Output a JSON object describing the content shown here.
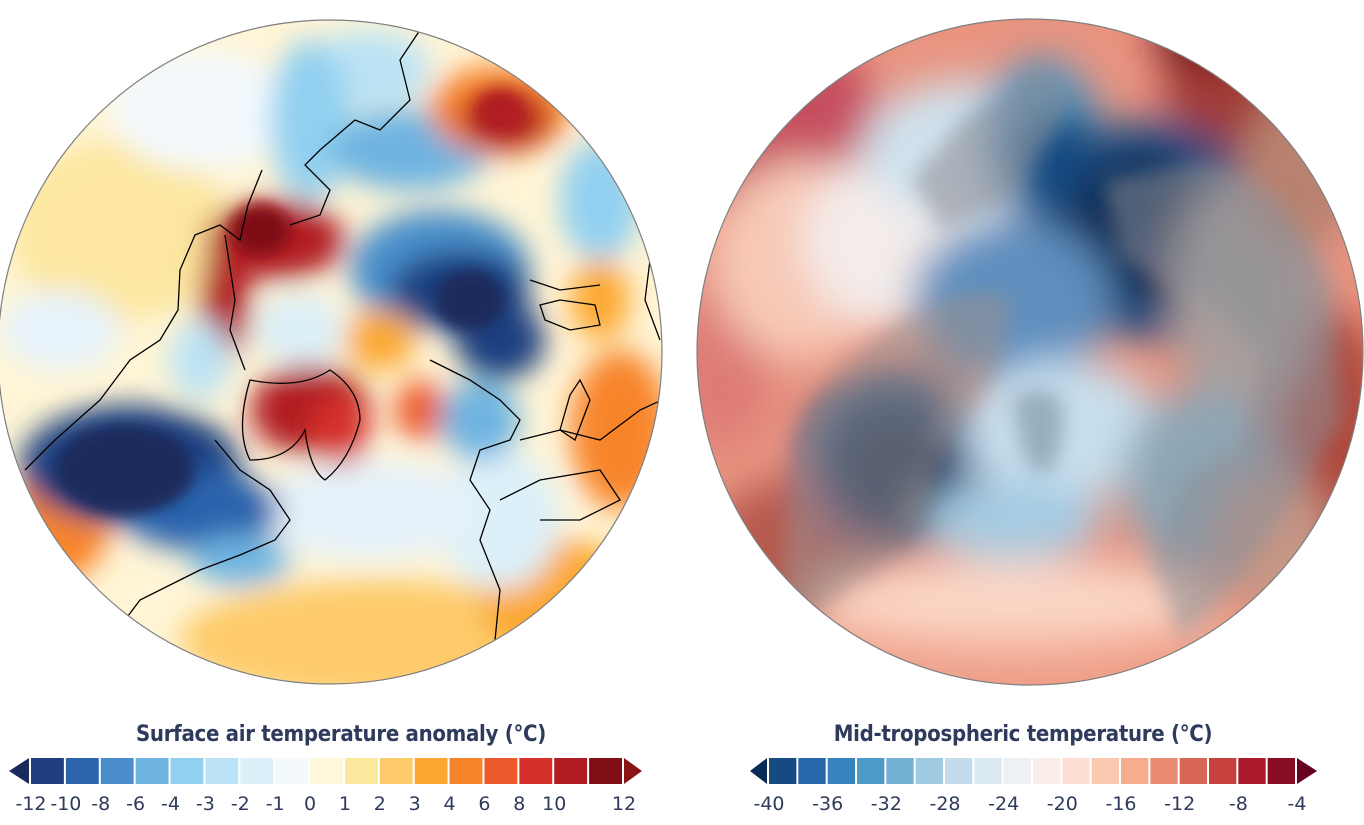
{
  "figure": {
    "panels": [
      {
        "id": "surface",
        "legend_title": "Surface air temperature anomaly (°C)",
        "colorbar": {
          "ticks": [
            "-12",
            "-10",
            "-8",
            "-6",
            "-4",
            "-3",
            "-2",
            "-1",
            "0",
            "1",
            "2",
            "3",
            "4",
            "6",
            "8",
            "10",
            "12"
          ],
          "colors": [
            "#1f3f80",
            "#2b63ad",
            "#4a8fcb",
            "#6eb4e1",
            "#92d0f1",
            "#bce3f5",
            "#dcf0f9",
            "#f3f9fd",
            "#fff8dd",
            "#fde99d",
            "#fdcb6a",
            "#fca833",
            "#f8842a",
            "#ec5a2b",
            "#d7302b",
            "#b11c22",
            "#7f0f14"
          ],
          "extend_low_color": "#1b2a5c",
          "extend_high_color": "#8a1316",
          "tick_labels": [
            "-12",
            "-10",
            "-8",
            "-6",
            "-4",
            "-3",
            "-2",
            "-1",
            "0",
            "1",
            "2",
            "3",
            "4",
            "6",
            "8",
            "10",
            "12"
          ],
          "extend": "both"
        }
      },
      {
        "id": "midtrop",
        "legend_title": "Mid-tropospheric temperature (°C)",
        "colorbar": {
          "colors": [
            "#174a82",
            "#2666ab",
            "#3683bd",
            "#4d9ac8",
            "#74b1d5",
            "#9fcae2",
            "#c2dceb",
            "#dbe9f2",
            "#edf1f4",
            "#f9eeea",
            "#fde0d3",
            "#fbc8b0",
            "#f6ad8f",
            "#ea8c71",
            "#d96756",
            "#c6403e",
            "#ab1a2c",
            "#870d25"
          ],
          "extend_low_color": "#0a2a57",
          "extend_high_color": "#67001f",
          "tick_labels": [
            "-40",
            "-36",
            "-32",
            "-28",
            "-24",
            "-20",
            "-16",
            "-12",
            "-8",
            "-4"
          ],
          "extend": "both"
        }
      }
    ]
  },
  "chart_data": [
    {
      "type": "heatmap",
      "title": "Surface air temperature anomaly (°C)",
      "projection": "north polar stereographic",
      "colorbar_levels": [
        -12,
        -10,
        -8,
        -6,
        -4,
        -3,
        -2,
        -1,
        0,
        1,
        2,
        3,
        4,
        6,
        8,
        10,
        12
      ],
      "vrange": [
        -12,
        12
      ],
      "units": "°C",
      "coastlines": true
    },
    {
      "type": "heatmap",
      "title": "Mid-tropospheric temperature (°C)",
      "projection": "north polar stereographic",
      "colorbar_levels": [
        -40,
        -38,
        -36,
        -34,
        -32,
        -30,
        -28,
        -26,
        -24,
        -22,
        -20,
        -18,
        -16,
        -14,
        -12,
        -10,
        -8,
        -6,
        -4
      ],
      "tick_labels": [
        -40,
        -36,
        -32,
        -28,
        -24,
        -20,
        -16,
        -12,
        -8,
        -4
      ],
      "vrange": [
        -40,
        -4
      ],
      "units": "°C",
      "land_shading": true
    }
  ]
}
